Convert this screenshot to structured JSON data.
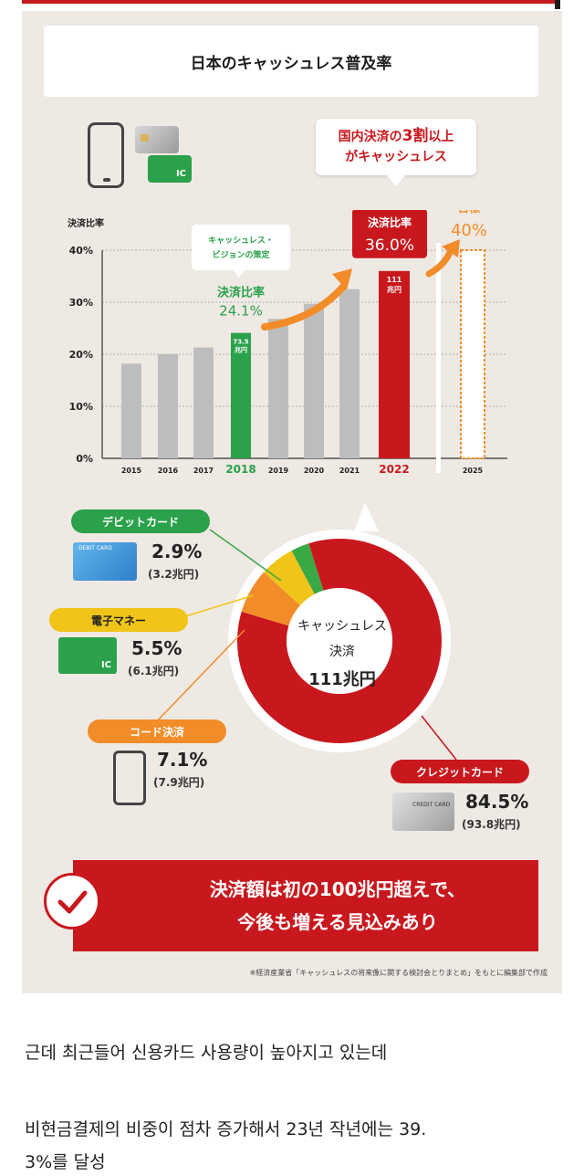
{
  "chart_data": [
    {
      "type": "bar",
      "title": "日本のキャッシュレス普及率",
      "ylabel": "決済比率",
      "categories": [
        "2015",
        "2016",
        "2017",
        "2018",
        "2019",
        "2020",
        "2021",
        "2022",
        "2025"
      ],
      "values": [
        18.2,
        20.0,
        21.3,
        24.1,
        26.8,
        29.7,
        32.5,
        36.0,
        40.0
      ],
      "ylim": [
        0,
        40
      ],
      "yticks": [
        "0%",
        "10%",
        "20%",
        "30%",
        "40%"
      ],
      "grid": true,
      "colors": {
        "default": "#bdbdbd",
        "highlight_2018": "#2aa14a",
        "highlight_2022": "#c8181e",
        "target": "#f28c28"
      },
      "annotations": {
        "vision_callout": "キャッシュレス・ビジョンの策定",
        "ratio_label": "決済比率",
        "ratio_2018": "24.1%",
        "amount_2018_a": "73.5",
        "amount_2018_b": "兆円",
        "ratio_2022": "36.0%",
        "amount_2022_a": "111",
        "amount_2022_b": "兆円",
        "target_label": "目標",
        "target_value": "40%",
        "headline_a": "国内決済の",
        "headline_b": "3割",
        "headline_c": "以上",
        "headline_d": "がキャッシュレス"
      }
    },
    {
      "type": "pie",
      "center_label": [
        "キャッシュレス",
        "決済",
        "111兆円"
      ],
      "slices": [
        {
          "name": "クレジットカード",
          "value": 84.5,
          "amount": "(93.8兆円)",
          "color": "#c8181e"
        },
        {
          "name": "デビットカード",
          "value": 2.9,
          "amount": "(3.2兆円)",
          "color": "#3aa845"
        },
        {
          "name": "電子マネー",
          "value": 5.5,
          "amount": "(6.1兆円)",
          "color": "#f0c419"
        },
        {
          "name": "コード決済",
          "value": 7.1,
          "amount": "(7.9兆円)",
          "color": "#f28c28"
        }
      ]
    }
  ],
  "labels": {
    "debit": {
      "name": "デビットカード",
      "pct": "2.9%",
      "amt": "(3.2兆円)"
    },
    "emoney": {
      "name": "電子マネー",
      "pct": "5.5%",
      "amt": "(6.1兆円)"
    },
    "code": {
      "name": "コード決済",
      "pct": "7.1%",
      "amt": "(7.9兆円)"
    },
    "credit": {
      "name": "クレジットカード",
      "pct": "84.5%",
      "amt": "(93.8兆円)"
    }
  },
  "conclusion": [
    "決済額は初の100兆円超えで、",
    "今後も増える見込みあり"
  ],
  "footnote": "※経済産業省「キャッシュレスの将来像に関する検討会とりまとめ」をもとに編集部で作成",
  "card_texts": {
    "ic": "IC",
    "debit": "DEBIT CARD",
    "credit": "CREDIT CARD"
  },
  "korean_text": [
    "근데 최근들어 신용카드 사용량이 높아지고 있는데",
    "비현금결제의 비중이 점차 증가해서 23년 작년에는 39.",
    "3%를 달성"
  ]
}
